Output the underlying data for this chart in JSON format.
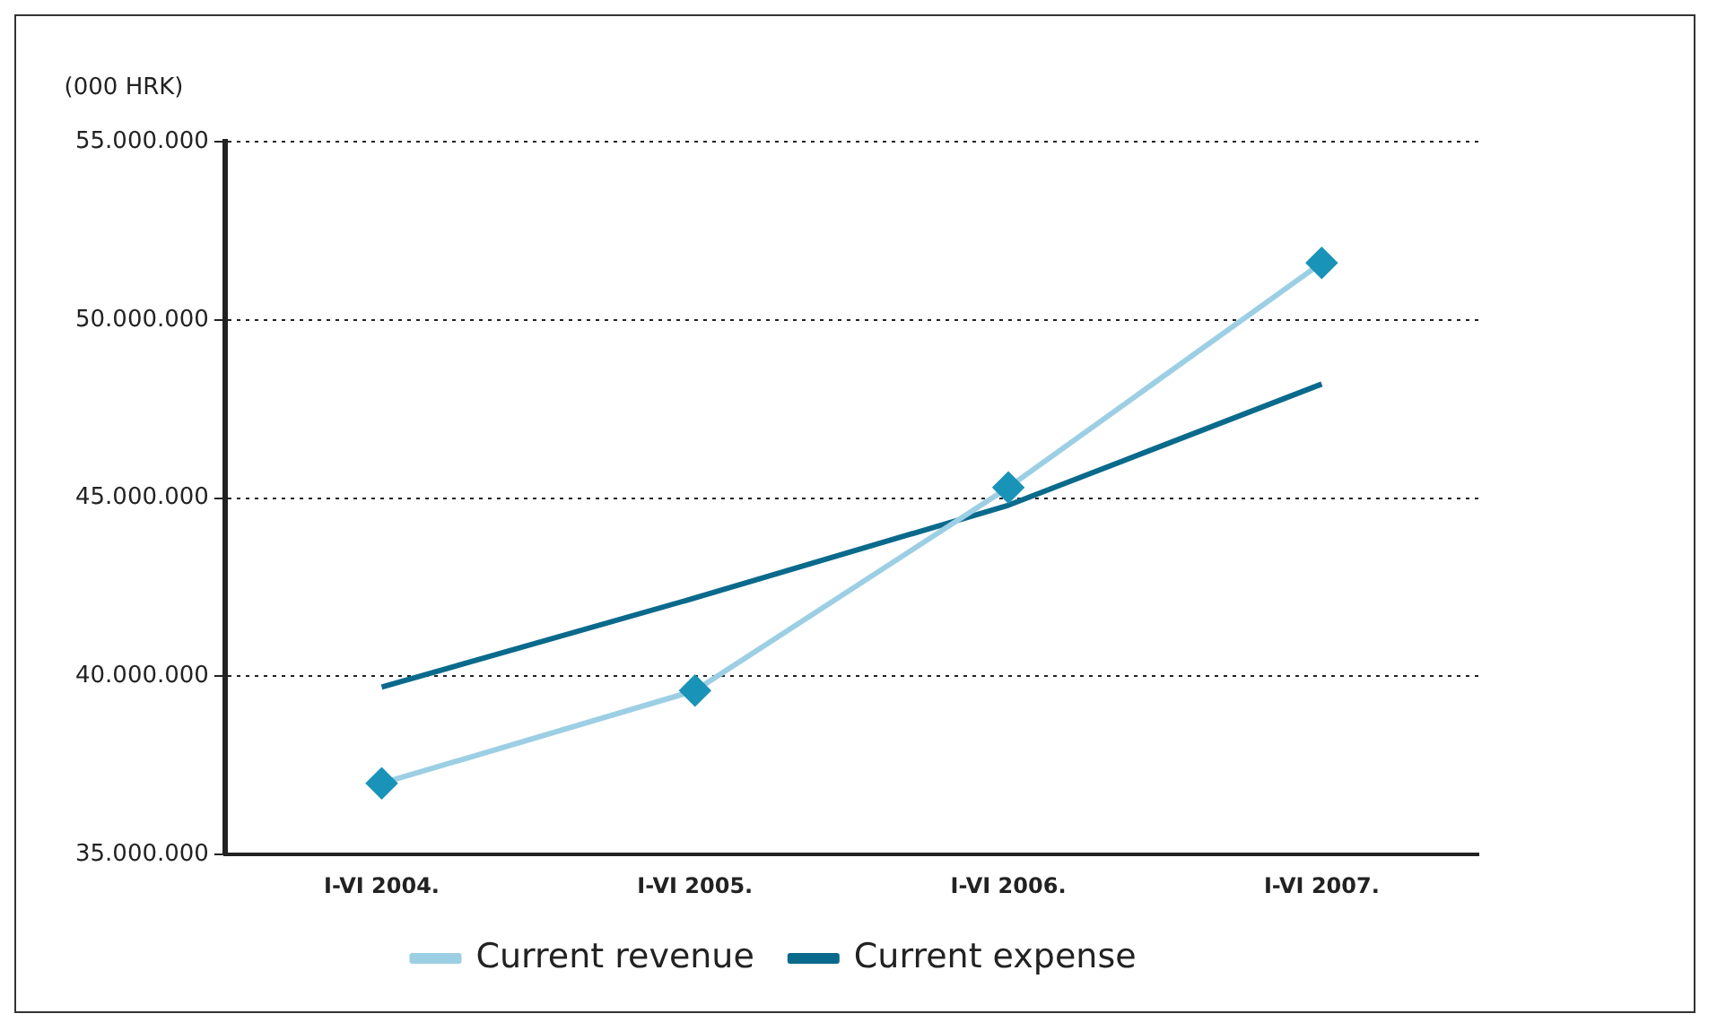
{
  "chart_data": {
    "type": "line",
    "ylabel": "(000 HRK)",
    "categories": [
      "I-VI 2004.",
      "I-VI 2005.",
      "I-VI 2006.",
      "I-VI 2007."
    ],
    "series": [
      {
        "name": "Current revenue",
        "color": "#9ccfe4",
        "values": [
          37000000,
          39600000,
          45300000,
          51600000
        ],
        "marker": "diamond"
      },
      {
        "name": "Current expense",
        "color": "#0a6a8c",
        "values": [
          39700000,
          42200000,
          44800000,
          48200000
        ],
        "marker": "none"
      }
    ],
    "ylim": [
      35000000,
      55000000
    ],
    "yticks": [
      {
        "value": 35000000,
        "label": "35.000.000"
      },
      {
        "value": 40000000,
        "label": "40.000.000"
      },
      {
        "value": 45000000,
        "label": "45.000.000"
      },
      {
        "value": 50000000,
        "label": "50.000.000"
      },
      {
        "value": 55000000,
        "label": "55.000.000"
      }
    ],
    "grid": "y",
    "legend": "bottom",
    "line_style": "solid"
  }
}
